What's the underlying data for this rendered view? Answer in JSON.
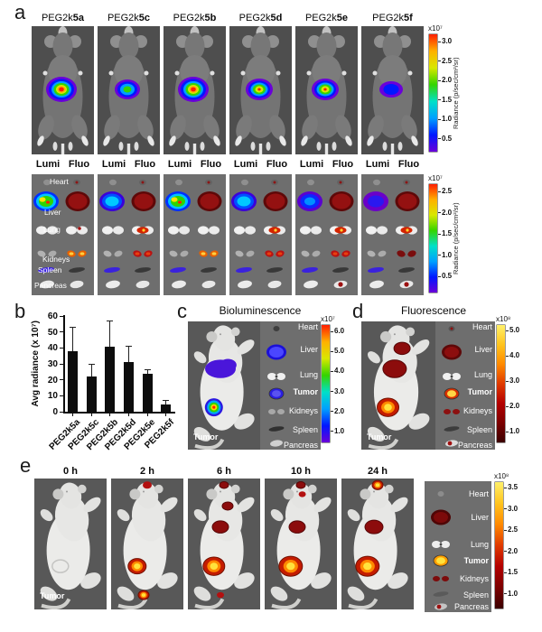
{
  "panel_a": {
    "label": "a",
    "col_headers": {
      "lumi": "Lumi",
      "fluo": "Fluo"
    },
    "mice": [
      {
        "prefix": "PEG2k",
        "bold": "5a",
        "signal": "strong"
      },
      {
        "prefix": "PEG2k",
        "bold": "5c",
        "signal": "moderate"
      },
      {
        "prefix": "PEG2k",
        "bold": "5b",
        "signal": "strong"
      },
      {
        "prefix": "PEG2k",
        "bold": "5d",
        "signal": "strong_small"
      },
      {
        "prefix": "PEG2k",
        "bold": "5e",
        "signal": "strong_small"
      },
      {
        "prefix": "PEG2k",
        "bold": "5f",
        "signal": "weak"
      }
    ],
    "organ_labels": [
      "Heart",
      "Liver",
      "Lung",
      "Kidneys",
      "Spleen",
      "Pancreas"
    ],
    "organ_tiles": [
      {
        "liver_lumi": "green",
        "lung_fluo": "spot",
        "kidneys_fluo": "orange",
        "pancreas_fluo": "plain"
      },
      {
        "liver_lumi": "cyan",
        "lung_fluo": "red",
        "kidneys_fluo": "red",
        "pancreas_fluo": "plain"
      },
      {
        "liver_lumi": "green",
        "lung_fluo": "plain",
        "kidneys_fluo": "orange",
        "pancreas_fluo": "plain"
      },
      {
        "liver_lumi": "cyan",
        "lung_fluo": "red",
        "kidneys_fluo": "red",
        "pancreas_fluo": "plain"
      },
      {
        "liver_lumi": "blue",
        "lung_fluo": "red",
        "kidneys_fluo": "red",
        "pancreas_fluo": "red"
      },
      {
        "liver_lumi": "purple",
        "lung_fluo": "red",
        "kidneys_fluo": "dark",
        "pancreas_fluo": "red"
      }
    ],
    "colorbar_row1": {
      "exponent": "x10⁷",
      "ticks": [
        "3.0",
        "2.5",
        "2.0",
        "1.5",
        "1.0",
        "0.5"
      ],
      "unit": "Radiance (p/sec/cm²/sr)",
      "colormap": "jet"
    },
    "colorbar_row2": {
      "exponent": "x10⁷",
      "ticks": [
        "2.5",
        "2.0",
        "1.5",
        "1.0",
        "0.5"
      ],
      "unit": "Radiance (p/sec/cm²/sr)",
      "colormap": "jet"
    }
  },
  "panel_b": {
    "label": "b"
  },
  "chart_data": {
    "type": "bar",
    "title": "",
    "categories": [
      "PEG2k5a",
      "PEG2k5c",
      "PEG2k5b",
      "PEG2k5d",
      "PEG2k5e",
      "PEG2k5f"
    ],
    "values": [
      38,
      22,
      41,
      31,
      23.5,
      4.5
    ],
    "errors_upper": [
      15,
      8,
      16,
      10.5,
      3,
      3
    ],
    "xlabel": "",
    "ylabel": "Avg radiance (x 10⁷)",
    "ylim": [
      0,
      60
    ],
    "yticks": [
      0,
      10,
      20,
      30,
      40,
      50,
      60
    ],
    "bar_color": "#0d0d0d",
    "legend": null,
    "grid": false
  },
  "panel_c": {
    "label": "c",
    "title": "Bioluminescence",
    "tumor_label": "Tumor",
    "organ_labels": [
      "Heart",
      "Liver",
      "Lung",
      "Tumor",
      "Kidneys",
      "Spleen",
      "Pancreas"
    ],
    "bold_label": "Tumor",
    "organ_scheme": "bioluminescence",
    "mouse_spots": [
      {
        "site": "liver",
        "style": "purpleblob",
        "size": 17
      },
      {
        "site": "tumor",
        "style": "jetspot",
        "size": 10
      }
    ],
    "colorbar": {
      "exponent": "x10⁷",
      "ticks": [
        "6.0",
        "5.0",
        "4.0",
        "3.0",
        "2.0",
        "1.0"
      ],
      "colormap": "jet"
    }
  },
  "panel_d": {
    "label": "d",
    "title": "Fluorescence",
    "tumor_label": "Tumor",
    "organ_labels": [
      "Heart",
      "Liver",
      "Lung",
      "Tumor",
      "Kidneys",
      "Spleen",
      "Pancreas"
    ],
    "bold_label": "Tumor",
    "organ_scheme": "fluorescence",
    "mouse_spots": [
      {
        "site": "neck",
        "style": "darkred",
        "size": 9
      },
      {
        "site": "liver",
        "style": "darkred",
        "size": 13
      },
      {
        "site": "tumor",
        "style": "hotspot",
        "size": 12
      }
    ],
    "colorbar": {
      "exponent": "x10⁸",
      "ticks": [
        "5.0",
        "4.0",
        "3.0",
        "2.0",
        "1.0"
      ],
      "colormap": "hot"
    }
  },
  "panel_e": {
    "label": "e",
    "tumor_label": "Tumor",
    "organ_labels": [
      "Heart",
      "Liver",
      "Lung",
      "Tumor",
      "Kidneys",
      "Spleen",
      "Pancreas"
    ],
    "bold_label": "Tumor",
    "organ_scheme": "hot",
    "timepoints": [
      {
        "label": "0 h",
        "spots": []
      },
      {
        "label": "2 h",
        "spots": [
          {
            "site": "nose",
            "style": "redspot",
            "size": 5
          },
          {
            "site": "tumor",
            "style": "hotspot",
            "size": 10
          },
          {
            "site": "bladder",
            "style": "hotspot",
            "size": 6
          }
        ]
      },
      {
        "label": "6 h",
        "spots": [
          {
            "site": "nose",
            "style": "darkred",
            "size": 5
          },
          {
            "site": "neck",
            "style": "darkred",
            "size": 6
          },
          {
            "site": "liver",
            "style": "darkred",
            "size": 9
          },
          {
            "site": "tumor",
            "style": "hotspot",
            "size": 12
          },
          {
            "site": "bladder",
            "style": "redspot",
            "size": 4
          }
        ]
      },
      {
        "label": "10 h",
        "spots": [
          {
            "site": "nose",
            "style": "darkred",
            "size": 5
          },
          {
            "site": "head",
            "style": "redspot",
            "size": 4
          },
          {
            "site": "liver",
            "style": "darkred",
            "size": 9
          },
          {
            "site": "tumor",
            "style": "hotspot",
            "size": 13
          }
        ]
      },
      {
        "label": "24 h",
        "spots": [
          {
            "site": "nose",
            "style": "hotspot",
            "size": 6
          },
          {
            "site": "liver",
            "style": "darkred",
            "size": 10
          },
          {
            "site": "tumor",
            "style": "hotspot",
            "size": 13
          }
        ]
      }
    ],
    "colorbar": {
      "exponent": "x10⁸",
      "ticks": [
        "3.5",
        "3.0",
        "2.5",
        "2.0",
        "1.5",
        "1.0"
      ],
      "colormap": "hot"
    }
  },
  "colors": {
    "jet": [
      "#6a00d9",
      "#0018ff",
      "#00a0ff",
      "#00e0c8",
      "#35d400",
      "#d8e800",
      "#ffb000",
      "#ff1e00"
    ],
    "hot": [
      "#3a0000",
      "#7c0000",
      "#b30000",
      "#e03a00",
      "#ff8a00",
      "#ffc41e",
      "#fff06a"
    ],
    "photo_bg_dark": "#4e4e4e",
    "photo_bg_mid": "#6e6e6e",
    "white_mouse_bg": "#585858",
    "bar_color": "#0d0d0d"
  }
}
